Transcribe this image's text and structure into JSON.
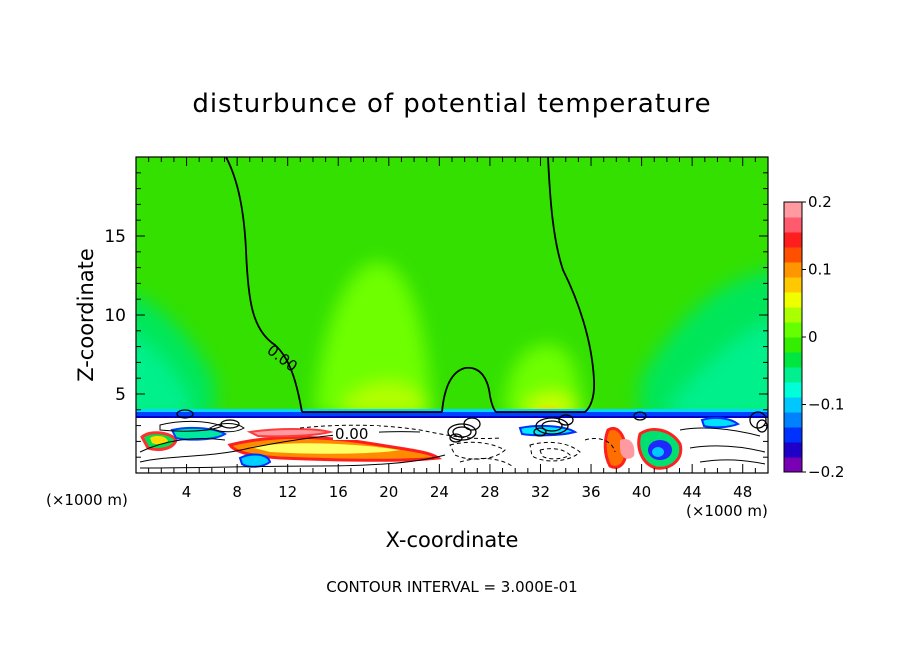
{
  "chart_data": {
    "type": "heatmap",
    "title": "disturbunce of potential temperature",
    "xlabel": "X-coordinate",
    "ylabel": "Z-coordinate",
    "x_unit_label": "(×1000 m)",
    "x_unit_label_right": "(×1000 m)",
    "xlim": [
      0,
      50
    ],
    "ylim": [
      0,
      20
    ],
    "x_ticks": [
      "4",
      "8",
      "12",
      "16",
      "20",
      "24",
      "28",
      "32",
      "36",
      "40",
      "44",
      "48"
    ],
    "y_ticks": [
      "5",
      "10",
      "15"
    ],
    "colorbar": {
      "range": [
        -0.2,
        0.2
      ],
      "tick_labels": [
        "0.2",
        "0.1",
        "0",
        "−0.1",
        "−0.2"
      ],
      "tick_values": [
        0.2,
        0.1,
        0,
        -0.1,
        -0.2
      ],
      "colors": [
        "#7a00b5",
        "#1e00c8",
        "#0032ff",
        "#0082ff",
        "#00c8ff",
        "#00ffd8",
        "#00f090",
        "#00e640",
        "#33ee00",
        "#66ff00",
        "#aaff00",
        "#f0ff00",
        "#ffc800",
        "#ff9600",
        "#ff5000",
        "#ff1e1e",
        "#ff5a6e",
        "#ff9aa0"
      ]
    },
    "contour_labels": [
      "0.00",
      "0.00"
    ],
    "footer": "CONTOUR INTERVAL = 3.000E-01"
  }
}
